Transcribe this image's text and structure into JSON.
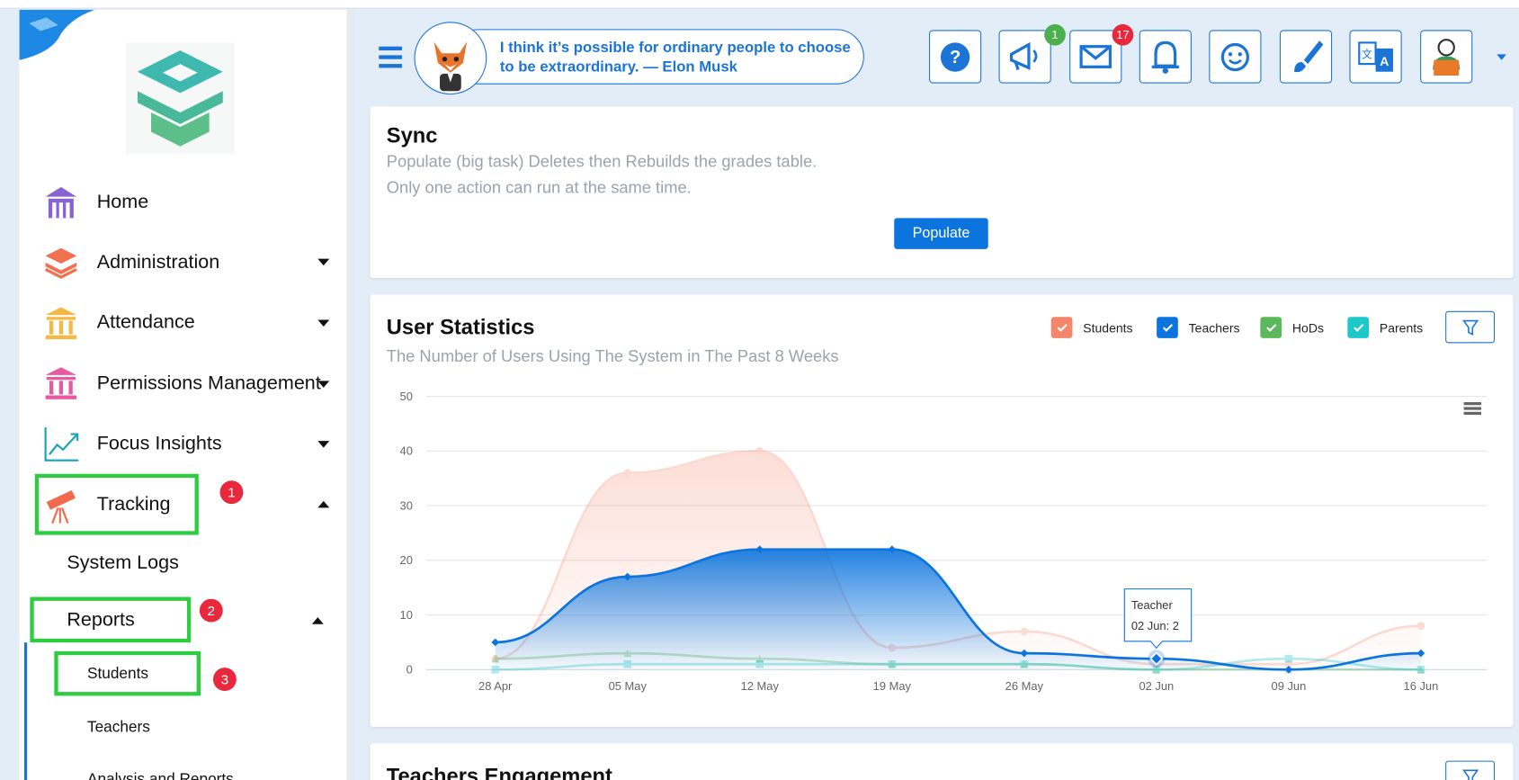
{
  "sidebar": {
    "menu": [
      "Home",
      "Administration",
      "Attendance",
      "Permissions Management",
      "Focus Insights",
      "Tracking"
    ],
    "system_logs": "System Logs",
    "reports": "Reports",
    "report_items": [
      "Students",
      "Teachers",
      "Analysis and Reports"
    ],
    "markers": [
      1,
      2,
      3
    ]
  },
  "header": {
    "quote": [
      "I think it’s possible for ordinary people to choose",
      "to be extraordinary. — Elon Musk"
    ],
    "badges": [
      1,
      17
    ]
  },
  "sync": {
    "title": "Sync",
    "lines": [
      "Populate (big task) Deletes then Rebuilds the grades table.",
      "Only one action can run at the same time."
    ],
    "button": "Populate"
  },
  "chart_data": {
    "type": "line",
    "title": "User Statistics",
    "subtitle": "The Number of Users Using The System in The Past 8 Weeks",
    "categories": [
      "28 Apr",
      "05 May",
      "12 May",
      "19 May",
      "26 May",
      "02 Jun",
      "09 Jun",
      "16 Jun"
    ],
    "series": [
      {
        "name": "Students",
        "color": "#f4866a",
        "area": true,
        "marker": "circle",
        "values": [
          2,
          36,
          40,
          4,
          7,
          1,
          1,
          8
        ]
      },
      {
        "name": "Teachers",
        "color": "#0b74de",
        "area": true,
        "marker": "diamond",
        "values": [
          5,
          17,
          22,
          22,
          3,
          2,
          0,
          3
        ]
      },
      {
        "name": "HoDs",
        "color": "#5cb85c",
        "area": false,
        "marker": "triangle",
        "values": [
          2,
          3,
          2,
          1,
          1,
          0,
          0,
          0
        ]
      },
      {
        "name": "Parents",
        "color": "#1ec8c8",
        "area": false,
        "marker": "square",
        "values": [
          0,
          1,
          1,
          1,
          1,
          0,
          2,
          0
        ]
      }
    ],
    "ylim": [
      0,
      50
    ],
    "yticks": [
      0,
      10,
      20,
      30,
      40,
      50
    ],
    "grid": true,
    "legend": "top-right",
    "tooltip": {
      "title": "Teacher",
      "text": "02 Jun: 2"
    }
  },
  "teachers_engagement": {
    "title": "Teachers Engagement"
  }
}
